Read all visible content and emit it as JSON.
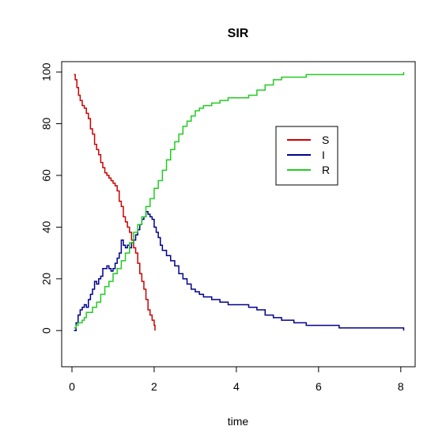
{
  "chart_data": {
    "type": "line",
    "title": "SIR",
    "xlabel": "time",
    "ylabel": "",
    "xlim": [
      -0.25,
      8.35
    ],
    "ylim": [
      -14,
      104
    ],
    "xticks": [
      0,
      2,
      4,
      6,
      8
    ],
    "yticks": [
      0,
      20,
      40,
      60,
      80,
      100
    ],
    "xtick_labels": [
      "0",
      "2",
      "4",
      "6",
      "8"
    ],
    "ytick_labels": [
      "0",
      "20",
      "40",
      "60",
      "80",
      "100"
    ],
    "grid": false,
    "legend_position": "top-right",
    "series": [
      {
        "name": "S",
        "color": "#cc0000",
        "x": [
          0.05,
          0.08,
          0.12,
          0.16,
          0.2,
          0.25,
          0.3,
          0.35,
          0.4,
          0.45,
          0.5,
          0.55,
          0.6,
          0.65,
          0.7,
          0.75,
          0.8,
          0.85,
          0.9,
          0.95,
          1.0,
          1.05,
          1.1,
          1.15,
          1.2,
          1.25,
          1.3,
          1.35,
          1.4,
          1.45,
          1.5,
          1.55,
          1.6,
          1.65,
          1.7,
          1.75,
          1.8,
          1.85,
          1.9,
          1.95,
          2.0,
          2.02
        ],
        "y": [
          99,
          97,
          94,
          91,
          89,
          87,
          86,
          84,
          82,
          78,
          76,
          72,
          70,
          68,
          65,
          63,
          61,
          60,
          59,
          58,
          57,
          56,
          54,
          50,
          48,
          44,
          42,
          40,
          38,
          35,
          32,
          30,
          26,
          22,
          19,
          16,
          12,
          8,
          6,
          4,
          2,
          0
        ]
      },
      {
        "name": "I",
        "color": "#00008b",
        "x": [
          0.05,
          0.1,
          0.15,
          0.2,
          0.25,
          0.3,
          0.35,
          0.4,
          0.45,
          0.5,
          0.55,
          0.6,
          0.65,
          0.7,
          0.75,
          0.8,
          0.85,
          0.9,
          0.95,
          1.0,
          1.05,
          1.1,
          1.15,
          1.2,
          1.25,
          1.3,
          1.35,
          1.4,
          1.45,
          1.5,
          1.55,
          1.6,
          1.65,
          1.7,
          1.75,
          1.8,
          1.85,
          1.9,
          1.95,
          2.0,
          2.05,
          2.1,
          2.15,
          2.2,
          2.3,
          2.4,
          2.5,
          2.6,
          2.7,
          2.8,
          2.9,
          3.0,
          3.1,
          3.2,
          3.4,
          3.6,
          3.8,
          4.0,
          4.3,
          4.5,
          4.7,
          4.9,
          5.1,
          5.4,
          5.7,
          6.0,
          6.5,
          7.0,
          7.5,
          8.05,
          8.07
        ],
        "y": [
          0,
          3,
          6,
          8,
          9,
          10,
          9,
          12,
          14,
          16,
          19,
          18,
          20,
          21,
          24,
          24,
          25,
          24,
          23,
          24,
          26,
          28,
          30,
          35,
          33,
          32,
          33,
          32,
          34,
          35,
          37,
          39,
          41,
          43,
          44,
          46,
          45,
          44,
          43,
          40,
          38,
          36,
          33,
          31,
          29,
          27,
          25,
          22,
          20,
          18,
          16,
          15,
          14,
          13,
          12,
          11,
          10,
          10,
          9,
          8,
          6,
          5,
          4,
          3,
          2,
          2,
          1,
          1,
          1,
          1,
          0
        ]
      },
      {
        "name": "R",
        "color": "#22cc22",
        "x": [
          0.05,
          0.1,
          0.15,
          0.2,
          0.25,
          0.3,
          0.35,
          0.4,
          0.5,
          0.6,
          0.7,
          0.8,
          0.9,
          1.0,
          1.1,
          1.2,
          1.3,
          1.4,
          1.5,
          1.6,
          1.7,
          1.8,
          1.9,
          2.0,
          2.1,
          2.2,
          2.3,
          2.4,
          2.5,
          2.6,
          2.7,
          2.8,
          2.9,
          3.0,
          3.1,
          3.2,
          3.4,
          3.6,
          3.8,
          4.0,
          4.3,
          4.5,
          4.7,
          4.9,
          5.1,
          5.4,
          5.7,
          6.0,
          6.5,
          7.0,
          7.5,
          8.05,
          8.07
        ],
        "y": [
          1,
          2,
          3,
          3,
          4,
          5,
          7,
          7,
          9,
          11,
          14,
          17,
          19,
          22,
          24,
          27,
          30,
          34,
          38,
          41,
          44,
          48,
          51,
          55,
          58,
          62,
          66,
          70,
          73,
          76,
          79,
          81,
          83,
          85,
          86,
          87,
          88,
          89,
          90,
          90,
          91,
          93,
          95,
          97,
          98,
          98,
          99,
          99,
          99,
          99,
          99,
          99,
          100
        ]
      }
    ]
  }
}
